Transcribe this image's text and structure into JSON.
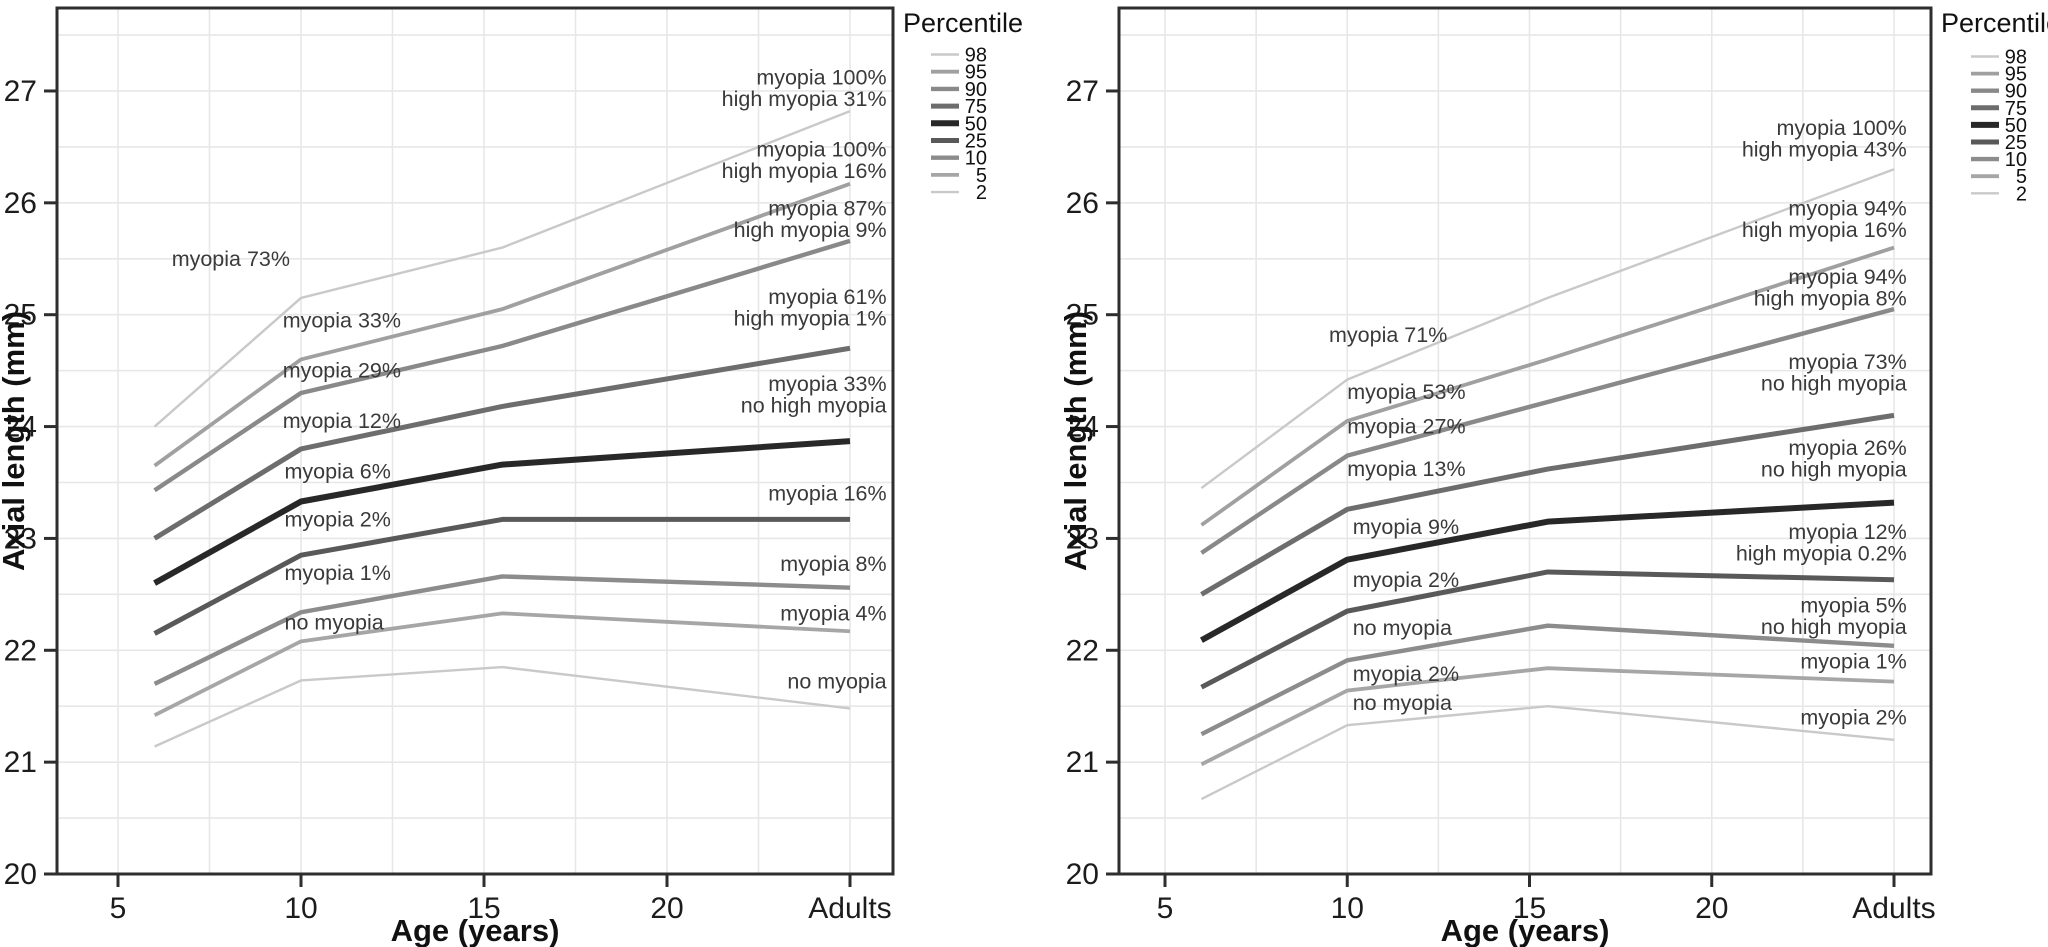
{
  "figure": {
    "x_axis_title": "Age (years)",
    "y_axis_title": "Axial length (mm)",
    "legend_title": "Percentile",
    "text_color": "#1c1c1c",
    "annotation_color": "#3a3a3a",
    "grid_color": "#e7e7e7",
    "border_color": "#2e2e2e"
  },
  "chart_data": [
    {
      "type": "line",
      "panel": "left",
      "xlabel": "Age (years)",
      "ylabel": "Axial length (mm)",
      "x": [
        6,
        10,
        15.5,
        25
      ],
      "x_note": "last station is plotted at the 'Adults' tick",
      "x_tick_ages": [
        5,
        10,
        15,
        20,
        25
      ],
      "x_ticklabels": [
        "5",
        "10",
        "15",
        "20",
        "Adults"
      ],
      "y_ticks": [
        20,
        21,
        22,
        23,
        24,
        25,
        26,
        27
      ],
      "ylim": [
        20,
        27.75
      ],
      "grid": "on",
      "legend_position": "right-top",
      "legend": {
        "title": "Percentile",
        "entries": [
          "98",
          "95",
          "90",
          "75",
          "50",
          "25",
          "10",
          "5",
          "2"
        ]
      },
      "series": [
        {
          "name": "98",
          "values": [
            24.0,
            25.15,
            25.6,
            26.82
          ],
          "color": "#c9c9c9",
          "width": 2.4
        },
        {
          "name": "95",
          "values": [
            23.65,
            24.6,
            25.05,
            26.17
          ],
          "color": "#a0a0a0",
          "width": 3.8
        },
        {
          "name": "90",
          "values": [
            23.43,
            24.3,
            24.72,
            25.66
          ],
          "color": "#898989",
          "width": 4.4
        },
        {
          "name": "75",
          "values": [
            23.0,
            23.8,
            24.18,
            24.7
          ],
          "color": "#6d6d6d",
          "width": 5.0
        },
        {
          "name": "50",
          "values": [
            22.6,
            23.33,
            23.66,
            23.87
          ],
          "color": "#282828",
          "width": 6.0
        },
        {
          "name": "25",
          "values": [
            22.15,
            22.85,
            23.17,
            23.17
          ],
          "color": "#595959",
          "width": 5.0
        },
        {
          "name": "10",
          "values": [
            21.7,
            22.34,
            22.66,
            22.56
          ],
          "color": "#8c8c8c",
          "width": 4.4
        },
        {
          "name": "5",
          "values": [
            21.42,
            22.08,
            22.33,
            22.17
          ],
          "color": "#a6a6a6",
          "width": 3.8
        },
        {
          "name": "2",
          "values": [
            21.14,
            21.73,
            21.85,
            21.48
          ],
          "color": "#c9c9c9",
          "width": 2.4
        }
      ],
      "mid_labels": [
        {
          "text": "myopia 73%",
          "age": 9.7,
          "mm": 25.5,
          "anchor": "end"
        },
        {
          "text": "myopia 33%",
          "age": 9.5,
          "mm": 24.95,
          "anchor": "start"
        },
        {
          "text": "myopia 29%",
          "age": 9.5,
          "mm": 24.5,
          "anchor": "start"
        },
        {
          "text": "myopia 12%",
          "age": 9.5,
          "mm": 24.05,
          "anchor": "start"
        },
        {
          "text": "myopia 6%",
          "age": 9.55,
          "mm": 23.6,
          "anchor": "start"
        },
        {
          "text": "myopia 2%",
          "age": 9.55,
          "mm": 23.17,
          "anchor": "start"
        },
        {
          "text": "myopia 1%",
          "age": 9.55,
          "mm": 22.69,
          "anchor": "start"
        },
        {
          "text": "no myopia",
          "age": 9.55,
          "mm": 22.25,
          "anchor": "start"
        }
      ],
      "end_label_anchor_age": 26.0,
      "end_labels": [
        {
          "lines": [
            "myopia 100%",
            "high myopia 31%"
          ],
          "mm": 27.02
        },
        {
          "lines": [
            "myopia 100%",
            "high myopia 16%"
          ],
          "mm": 26.38
        },
        {
          "lines": [
            "myopia 87%",
            "high myopia 9%"
          ],
          "mm": 25.85
        },
        {
          "lines": [
            "myopia 61%",
            "high myopia 1%"
          ],
          "mm": 25.06
        },
        {
          "lines": [
            "myopia 33%",
            "no high myopia"
          ],
          "mm": 24.28
        },
        {
          "lines": [
            "myopia 16%"
          ],
          "mm": 23.4
        },
        {
          "lines": [
            "myopia 8%"
          ],
          "mm": 22.77
        },
        {
          "lines": [
            "myopia 4%"
          ],
          "mm": 22.33
        },
        {
          "lines": [
            "no myopia"
          ],
          "mm": 21.72
        }
      ]
    },
    {
      "type": "line",
      "panel": "right",
      "xlabel": "Age (years)",
      "ylabel": "Axial length (mm)",
      "x": [
        6,
        10,
        15.5,
        25
      ],
      "x_note": "last station is plotted at the 'Adults' tick",
      "x_tick_ages": [
        5,
        10,
        15,
        20,
        25
      ],
      "x_ticklabels": [
        "5",
        "10",
        "15",
        "20",
        "Adults"
      ],
      "y_ticks": [
        20,
        21,
        22,
        23,
        24,
        25,
        26,
        27
      ],
      "ylim": [
        20,
        27.75
      ],
      "grid": "on",
      "legend_position": "right-top",
      "legend": {
        "title": "Percentile",
        "entries": [
          "98",
          "95",
          "90",
          "75",
          "50",
          "25",
          "10",
          "5",
          "2"
        ]
      },
      "series": [
        {
          "name": "98",
          "values": [
            23.45,
            24.42,
            25.15,
            26.3
          ],
          "color": "#c9c9c9",
          "width": 2.4
        },
        {
          "name": "95",
          "values": [
            23.12,
            24.05,
            24.6,
            25.6
          ],
          "color": "#a0a0a0",
          "width": 3.8
        },
        {
          "name": "90",
          "values": [
            22.87,
            23.74,
            24.22,
            25.05
          ],
          "color": "#898989",
          "width": 4.4
        },
        {
          "name": "75",
          "values": [
            22.5,
            23.26,
            23.62,
            24.1
          ],
          "color": "#6d6d6d",
          "width": 5.0
        },
        {
          "name": "50",
          "values": [
            22.09,
            22.81,
            23.15,
            23.32
          ],
          "color": "#282828",
          "width": 6.0
        },
        {
          "name": "25",
          "values": [
            21.67,
            22.35,
            22.7,
            22.63
          ],
          "color": "#595959",
          "width": 5.0
        },
        {
          "name": "10",
          "values": [
            21.25,
            21.91,
            22.22,
            22.04
          ],
          "color": "#8c8c8c",
          "width": 4.4
        },
        {
          "name": "5",
          "values": [
            20.98,
            21.64,
            21.84,
            21.72
          ],
          "color": "#a6a6a6",
          "width": 3.8
        },
        {
          "name": "2",
          "values": [
            20.67,
            21.33,
            21.5,
            21.2
          ],
          "color": "#c9c9c9",
          "width": 2.4
        }
      ],
      "mid_labels": [
        {
          "text": "myopia 71%",
          "age": 9.5,
          "mm": 24.82,
          "anchor": "start"
        },
        {
          "text": "myopia 53%",
          "age": 10.0,
          "mm": 24.31,
          "anchor": "start"
        },
        {
          "text": "myopia 27%",
          "age": 10.0,
          "mm": 24.0,
          "anchor": "start"
        },
        {
          "text": "myopia 13%",
          "age": 10.0,
          "mm": 23.62,
          "anchor": "start"
        },
        {
          "text": "myopia 9%",
          "age": 10.15,
          "mm": 23.1,
          "anchor": "start"
        },
        {
          "text": "myopia 2%",
          "age": 10.15,
          "mm": 22.63,
          "anchor": "start"
        },
        {
          "text": "no myopia",
          "age": 10.15,
          "mm": 22.2,
          "anchor": "start"
        },
        {
          "text": "myopia 2%",
          "age": 10.15,
          "mm": 21.79,
          "anchor": "start"
        },
        {
          "text": "no myopia",
          "age": 10.15,
          "mm": 21.53,
          "anchor": "start"
        }
      ],
      "end_label_anchor_age": 25.35,
      "end_labels": [
        {
          "lines": [
            "myopia 100%",
            "high myopia 43%"
          ],
          "mm": 26.57
        },
        {
          "lines": [
            "myopia 94%",
            "high myopia 16%"
          ],
          "mm": 25.85
        },
        {
          "lines": [
            "myopia 94%",
            "high myopia 8%"
          ],
          "mm": 25.24
        },
        {
          "lines": [
            "myopia 73%",
            "no high myopia"
          ],
          "mm": 24.48
        },
        {
          "lines": [
            "myopia 26%",
            "no high myopia"
          ],
          "mm": 23.71
        },
        {
          "lines": [
            "myopia 12%",
            "high myopia 0.2%"
          ],
          "mm": 22.96
        },
        {
          "lines": [
            "myopia 5%",
            "no high myopia"
          ],
          "mm": 22.3
        },
        {
          "lines": [
            "myopia 1%"
          ],
          "mm": 21.9
        },
        {
          "lines": [
            "myopia 2%"
          ],
          "mm": 21.4
        }
      ]
    }
  ]
}
